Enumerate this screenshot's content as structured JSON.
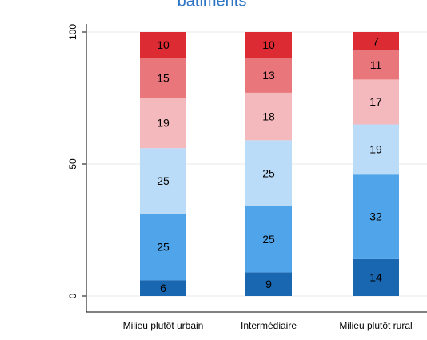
{
  "chart_data": {
    "type": "stacked_bar",
    "title": "bâtiments",
    "categories": [
      "Milieu plutôt urbain",
      "Intermédiaire",
      "Milieu plutôt rural"
    ],
    "series": [
      {
        "color": "#1a67b1",
        "values": [
          6,
          9,
          14
        ]
      },
      {
        "color": "#4fa4ea",
        "values": [
          25,
          25,
          32
        ]
      },
      {
        "color": "#bbdcf8",
        "values": [
          25,
          25,
          19
        ]
      },
      {
        "color": "#f4b9bc",
        "values": [
          19,
          18,
          17
        ]
      },
      {
        "color": "#e9767b",
        "values": [
          15,
          13,
          11
        ]
      },
      {
        "color": "#dc2b33",
        "values": [
          10,
          10,
          7
        ]
      }
    ],
    "ylim": [
      0,
      100
    ],
    "yticks": [
      0,
      50,
      100
    ],
    "grid": true
  }
}
